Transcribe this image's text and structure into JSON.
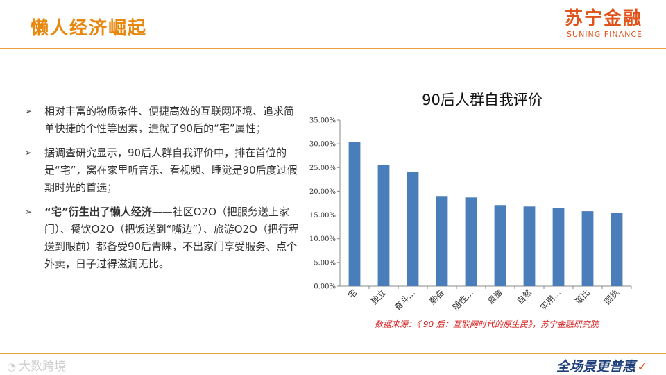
{
  "header": {
    "title": "懒人经济崛起",
    "logo_main": "苏宁金融",
    "logo_sub": "SUNING FINANCE",
    "accent_color": "#e8870e"
  },
  "bullets": [
    {
      "text": "相对丰富的物质条件、便捷高效的互联网环境、追求简单快捷的个性等因素，造就了90后的“宅”属性；"
    },
    {
      "text": "据调查研究显示，90后人群自我评价中，排在首位的是“宅”，窝在家里听音乐、看视频、睡觉是90后度过假期时光的首选；"
    },
    {
      "bold_text": "“宅”衍生出了懒人经济——",
      "text": "社区O2O（把服务送上家门）、餐饮O2O（把饭送到“嘴边”）、旅游O2O（把行程送到眼前）都备受90后青睐，不出家门享受服务、点个外卖，日子过得滋润无比。"
    }
  ],
  "bullet_icon": "arrow-bullet-icon",
  "chart": {
    "title": "90后人群自我评价",
    "source": "数据来源：《 90 后：互联网时代的原生民》，苏宁金融研究院"
  },
  "chart_data": {
    "type": "bar",
    "title": "90后人群自我评价",
    "categories": [
      "宅",
      "独立",
      "奋斗…",
      "勤奋",
      "随性…",
      "靠谱",
      "自然",
      "实用…",
      "逗比",
      "固执"
    ],
    "values": [
      30.4,
      25.6,
      24.1,
      19.0,
      18.7,
      17.1,
      16.8,
      16.5,
      15.8,
      15.5
    ],
    "ylim": [
      0,
      35
    ],
    "yticks": [
      "0.00%",
      "5.00%",
      "10.00%",
      "15.00%",
      "20.00%",
      "25.00%",
      "30.00%",
      "35.00%"
    ],
    "xlabel": "",
    "ylabel": "",
    "bar_color": "#4a7ebb",
    "grid": false,
    "legend": "none"
  },
  "footer": {
    "watermark": "大数跨境",
    "slogan_part1": "全场景",
    "slogan_part2": "更普惠"
  }
}
